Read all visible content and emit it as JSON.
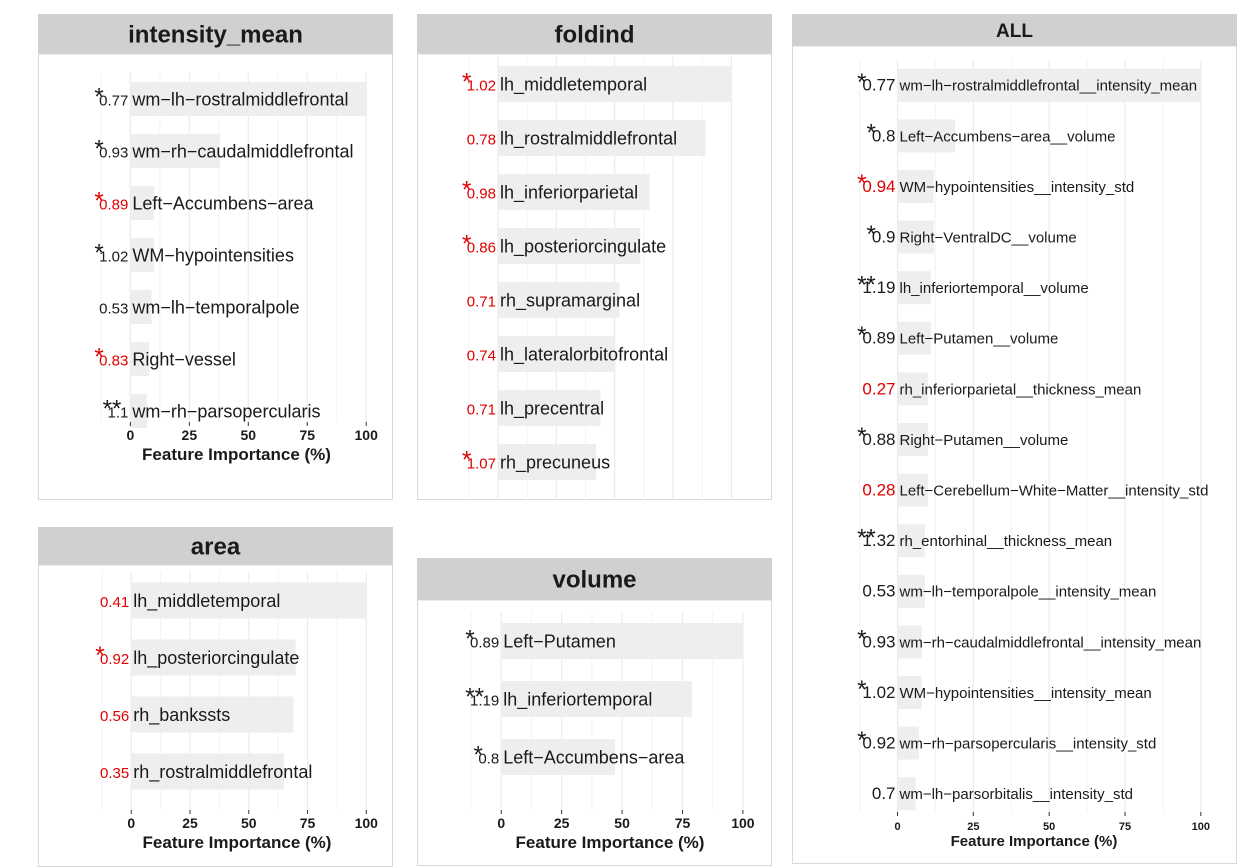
{
  "chart_data": [
    {
      "type": "bar",
      "orientation": "horizontal",
      "title": "intensity_mean",
      "xlabel": "Feature Importance (%)",
      "xlim": [
        -15,
        105
      ],
      "xticks": [
        "0",
        "25",
        "50",
        "75",
        "100"
      ],
      "tick_values": [
        0,
        25,
        50,
        75,
        100
      ],
      "categories": [
        "wm−lh−rostralmiddlefrontal",
        "wm−rh−caudalmiddlefrontal",
        "Left−Accumbens−area",
        "WM−hypointensities",
        "wm−lh−temporalpole",
        "Right−vessel",
        "wm−rh−parsopercularis"
      ],
      "values": [
        100,
        38,
        10,
        10,
        9,
        8,
        7
      ],
      "ratios": [
        "0.77",
        "0.93",
        "0.89",
        "1.02",
        "0.53",
        "0.83",
        "1.1"
      ],
      "stars": [
        "*",
        "*",
        "*",
        "*",
        "",
        "*",
        "**"
      ],
      "flag_colors": [
        "#1a1a1a",
        "#1a1a1a",
        "#e00000",
        "#1a1a1a",
        "#1a1a1a",
        "#e00000",
        "#1a1a1a"
      ],
      "ratio_colors": [
        "#1a1a1a",
        "#1a1a1a",
        "#e00000",
        "#1a1a1a",
        "#1a1a1a",
        "#e00000",
        "#1a1a1a"
      ]
    },
    {
      "type": "bar",
      "orientation": "horizontal",
      "title": "foldind",
      "xlabel": "Feature Importance (%)",
      "xlim": [
        -15,
        105
      ],
      "xticks": [
        "0",
        "25",
        "50",
        "75",
        "100"
      ],
      "tick_values": [
        0,
        25,
        50,
        75,
        100
      ],
      "categories": [
        "lh_middletemporal",
        "lh_rostralmiddlefrontal",
        "lh_inferiorparietal",
        "lh_posteriorcingulate",
        "rh_supramarginal",
        "lh_lateralorbitofrontal",
        "lh_precentral",
        "rh_precuneus"
      ],
      "values": [
        100,
        89,
        65,
        61,
        52,
        50,
        44,
        42
      ],
      "ratios": [
        "1.02",
        "0.78",
        "0.98",
        "0.86",
        "0.71",
        "0.74",
        "0.71",
        "1.07"
      ],
      "stars": [
        "*",
        "",
        "*",
        "*",
        "",
        "",
        "",
        "*"
      ],
      "flag_colors": [
        "#e00000",
        "#e00000",
        "#e00000",
        "#e00000",
        "#e00000",
        "#e00000",
        "#e00000",
        "#e00000"
      ],
      "ratio_colors": [
        "#e00000",
        "#e00000",
        "#e00000",
        "#e00000",
        "#e00000",
        "#e00000",
        "#e00000",
        "#e00000"
      ]
    },
    {
      "type": "bar",
      "orientation": "horizontal",
      "title": "ALL",
      "xlabel": "Feature Importance (%)",
      "xlim": [
        -15,
        105
      ],
      "xticks": [
        "0",
        "25",
        "50",
        "75",
        "100"
      ],
      "tick_values": [
        0,
        25,
        50,
        75,
        100
      ],
      "categories": [
        "wm−lh−rostralmiddlefrontal__intensity_mean",
        "Left−Accumbens−area__volume",
        "WM−hypointensities__intensity_std",
        "Right−VentralDC__volume",
        "lh_inferiortemporal__volume",
        "Left−Putamen__volume",
        "rh_inferiorparietal__thickness_mean",
        "Right−Putamen__volume",
        "Left−Cerebellum−White−Matter__intensity_std",
        "rh_entorhinal__thickness_mean",
        "wm−lh−temporalpole__intensity_mean",
        "wm−rh−caudalmiddlefrontal__intensity_mean",
        "WM−hypointensities__intensity_mean",
        "wm−rh−parsopercularis__intensity_std",
        "wm−lh−parsorbitalis__intensity_std"
      ],
      "values": [
        100,
        19,
        12,
        12,
        11,
        11,
        10,
        10,
        10,
        9,
        9,
        8,
        8,
        7,
        6
      ],
      "ratios": [
        "0.77",
        "0.8",
        "0.94",
        "0.9",
        "1.19",
        "0.89",
        "0.27",
        "0.88",
        "0.28",
        "1.32",
        "0.53",
        "0.93",
        "1.02",
        "0.92",
        "0.7"
      ],
      "stars": [
        "*",
        "*",
        "*",
        "*",
        "**",
        "*",
        "",
        "*",
        "",
        "**",
        "",
        "*",
        "*",
        "*",
        ""
      ],
      "flag_colors": [
        "#1a1a1a",
        "#1a1a1a",
        "#e00000",
        "#1a1a1a",
        "#1a1a1a",
        "#1a1a1a",
        "#e00000",
        "#1a1a1a",
        "#e00000",
        "#1a1a1a",
        "#1a1a1a",
        "#1a1a1a",
        "#1a1a1a",
        "#1a1a1a",
        "#1a1a1a"
      ],
      "ratio_colors": [
        "#1a1a1a",
        "#1a1a1a",
        "#e00000",
        "#1a1a1a",
        "#1a1a1a",
        "#1a1a1a",
        "#e00000",
        "#1a1a1a",
        "#e00000",
        "#1a1a1a",
        "#1a1a1a",
        "#1a1a1a",
        "#1a1a1a",
        "#1a1a1a",
        "#1a1a1a"
      ]
    },
    {
      "type": "bar",
      "orientation": "horizontal",
      "title": "area",
      "xlabel": "Feature Importance (%)",
      "xlim": [
        -15,
        105
      ],
      "xticks": [
        "0",
        "25",
        "50",
        "75",
        "100"
      ],
      "tick_values": [
        0,
        25,
        50,
        75,
        100
      ],
      "categories": [
        "lh_middletemporal",
        "lh_posteriorcingulate",
        "rh_bankssts",
        "rh_rostralmiddlefrontal"
      ],
      "values": [
        100,
        70,
        69,
        65
      ],
      "ratios": [
        "0.41",
        "0.92",
        "0.56",
        "0.35"
      ],
      "stars": [
        "",
        "*",
        "",
        ""
      ],
      "flag_colors": [
        "#e00000",
        "#e00000",
        "#e00000",
        "#e00000"
      ],
      "ratio_colors": [
        "#e00000",
        "#e00000",
        "#e00000",
        "#e00000"
      ]
    },
    {
      "type": "bar",
      "orientation": "horizontal",
      "title": "volume",
      "xlabel": "Feature Importance (%)",
      "xlim": [
        -15,
        105
      ],
      "xticks": [
        "0",
        "25",
        "50",
        "75",
        "100"
      ],
      "tick_values": [
        0,
        25,
        50,
        75,
        100
      ],
      "categories": [
        "Left−Putamen",
        "lh_inferiortemporal",
        "Left−Accumbens−area"
      ],
      "values": [
        100,
        79,
        47
      ],
      "ratios": [
        "0.89",
        "1.19",
        "0.8"
      ],
      "stars": [
        "*",
        "**",
        "*"
      ],
      "flag_colors": [
        "#1a1a1a",
        "#1a1a1a",
        "#1a1a1a"
      ],
      "ratio_colors": [
        "#1a1a1a",
        "#1a1a1a",
        "#1a1a1a"
      ]
    }
  ]
}
